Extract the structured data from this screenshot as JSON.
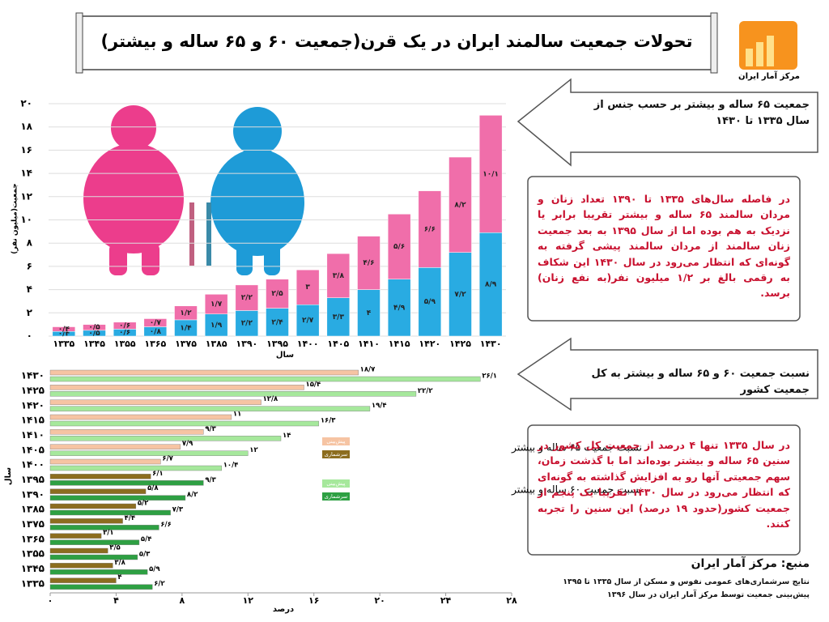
{
  "header": {
    "title": "تحولات جمعیت سالمند ایران در یک قرن(جمعیت ۶۰ و ۶۵ ساله و بیشتر)",
    "logo_text": "مرکز آمار ایران"
  },
  "chart_data": [
    {
      "type": "stacked-bar",
      "x_label": "سال",
      "y_label": "جمعیت(میلیون نفر)",
      "categories": [
        "۱۳۳۵",
        "۱۳۴۵",
        "۱۳۵۵",
        "۱۳۶۵",
        "۱۳۷۵",
        "۱۳۸۵",
        "۱۳۹۰",
        "۱۳۹۵",
        "۱۴۰۰",
        "۱۴۰۵",
        "۱۴۱۰",
        "۱۴۱۵",
        "۱۴۲۰",
        "۱۴۲۵",
        "۱۴۳۰"
      ],
      "series": [
        {
          "color": "#29abe2",
          "values": [
            0.4,
            0.5,
            0.6,
            0.8,
            1.4,
            1.9,
            2.2,
            2.4,
            2.7,
            3.3,
            4,
            4.9,
            5.9,
            7.2,
            8.9
          ],
          "value_labels": [
            "۰/۴",
            "۰/۵",
            "۰/۶",
            "۰/۸",
            "۱/۴",
            "۱/۹",
            "۲/۲",
            "۲/۴",
            "۲/۷",
            "۳/۳",
            "۴",
            "۴/۹",
            "۵/۹",
            "۷/۲",
            "۸/۹"
          ]
        },
        {
          "color": "#f06eaa",
          "values": [
            0.4,
            0.5,
            0.6,
            0.7,
            1.2,
            1.7,
            2.2,
            2.5,
            3,
            3.8,
            4.6,
            5.6,
            6.6,
            8.2,
            10.1
          ],
          "value_labels": [
            "۰/۴",
            "۰/۵",
            "۰/۶",
            "۰/۷",
            "۱/۲",
            "۱/۷",
            "۲/۲",
            "۲/۵",
            "۳",
            "۳/۸",
            "۴/۶",
            "۵/۶",
            "۶/۶",
            "۸/۲",
            "۱۰/۱"
          ]
        }
      ],
      "ylim": [
        0,
        20
      ],
      "yticks": [
        {
          "value": 0,
          "label": "۰"
        },
        {
          "value": 2,
          "label": "۲"
        },
        {
          "value": 4,
          "label": "۴"
        },
        {
          "value": 6,
          "label": "۶"
        },
        {
          "value": 8,
          "label": "۸"
        },
        {
          "value": 10,
          "label": "۱۰"
        },
        {
          "value": 12,
          "label": "۱۲"
        },
        {
          "value": 14,
          "label": "۱۴"
        },
        {
          "value": 16,
          "label": "۱۶"
        },
        {
          "value": 18,
          "label": "۱۸"
        },
        {
          "value": 20,
          "label": "۲۰"
        }
      ],
      "grid": true
    },
    {
      "type": "barh",
      "x_label": "درصد",
      "y_label": "سال",
      "categories": [
        "۱۴۳۰",
        "۱۴۲۵",
        "۱۴۲۰",
        "۱۴۱۵",
        "۱۴۱۰",
        "۱۴۰۵",
        "۱۴۰۰",
        "۱۳۹۵",
        "۱۳۹۰",
        "۱۳۸۵",
        "۱۳۷۵",
        "۱۳۶۵",
        "۱۳۵۵",
        "۱۳۴۵",
        "۱۳۳۵"
      ],
      "series": [
        {
          "name": "پیش‌بینی",
          "group": "نسبت جمعیت ۶۵ ساله و بیشتر",
          "color": "#f6c4a3",
          "values": [
            18.7,
            15.4,
            12.8,
            11,
            9.3,
            7.9,
            6.7,
            null,
            null,
            null,
            null,
            null,
            null,
            null,
            null
          ],
          "value_labels": [
            "۱۸/۷",
            "۱۵/۴",
            "۱۲/۸",
            "۱۱",
            "۹/۳",
            "۷/۹",
            "۶/۷",
            null,
            null,
            null,
            null,
            null,
            null,
            null,
            null
          ]
        },
        {
          "name": "سرشماری",
          "group": "نسبت جمعیت ۶۵ ساله و بیشتر",
          "color": "#8c6d1f",
          "values": [
            null,
            null,
            null,
            null,
            null,
            null,
            null,
            6.1,
            5.8,
            5.2,
            4.4,
            3.1,
            3.5,
            3.8,
            4
          ],
          "value_labels": [
            null,
            null,
            null,
            null,
            null,
            null,
            null,
            "۶/۱",
            "۵/۸",
            "۵/۲",
            "۴/۴",
            "۳/۱",
            "۳/۵",
            "۳/۸",
            "۴"
          ]
        },
        {
          "name": "پیش‌بینی",
          "group": "نسبت جمعیت ۶۰ ساله و بیشتر",
          "color": "#a6e89c",
          "values": [
            26.1,
            22.2,
            19.4,
            16.3,
            14,
            12,
            10.4,
            null,
            null,
            null,
            null,
            null,
            null,
            null,
            null
          ],
          "value_labels": [
            "۲۶/۱",
            "۲۲/۲",
            "۱۹/۴",
            "۱۶/۳",
            "۱۴",
            "۱۲",
            "۱۰/۴",
            null,
            null,
            null,
            null,
            null,
            null,
            null,
            null
          ]
        },
        {
          "name": "سرشماری",
          "group": "نسبت جمعیت ۶۰ ساله و بیشتر",
          "color": "#2ea043",
          "values": [
            null,
            null,
            null,
            null,
            null,
            null,
            null,
            9.3,
            8.2,
            7.3,
            6.6,
            5.4,
            5.3,
            5.9,
            6.2
          ],
          "value_labels": [
            null,
            null,
            null,
            null,
            null,
            null,
            null,
            "۹/۳",
            "۸/۲",
            "۷/۳",
            "۶/۶",
            "۵/۴",
            "۵/۳",
            "۵/۹",
            "۶/۲"
          ]
        }
      ],
      "xlim": [
        0,
        28
      ],
      "xticks": [
        {
          "value": 0,
          "label": "۰"
        },
        {
          "value": 4,
          "label": "۴"
        },
        {
          "value": 8,
          "label": "۸"
        },
        {
          "value": 12,
          "label": "۱۲"
        },
        {
          "value": 16,
          "label": "۱۶"
        },
        {
          "value": 20,
          "label": "۲۰"
        },
        {
          "value": 24,
          "label": "۲۴"
        },
        {
          "value": 28,
          "label": "۲۸"
        }
      ]
    }
  ],
  "panels": [
    {
      "caption": "جمعیت ۶۵ ساله و بیشتر بر حسب جنس از سال ۱۳۳۵ تا ۱۴۳۰",
      "note": "در فاصله سال‌های ۱۳۳۵ تا ۱۳۹۰ تعداد زنان و مردان سالمند ۶۵ ساله و بیشتر تقریبا برابر یا نزدیک به هم بوده اما از سال ۱۳۹۵ به بعد جمعیت زنان سالمند از مردان سالمند پیشی گرفته به گونه‌ای که انتظار می‌رود در سال ۱۴۳۰ این شکاف به رقمی بالغ بر ۱/۲ میلیون نفر(به نفع زنان) برسد."
    },
    {
      "caption": "نسبت جمعیت ۶۰ و ۶۵ ساله و بیشتر به کل جمعیت کشور",
      "note": "در سال ۱۳۳۵ تنها ۴ درصد از جمعیت کل کشور در سنین ۶۵ ساله و بیشتر بوده‌اند اما با گذشت زمان، سهم جمعیتی آنها رو به افزایش گذاشته به گونه‌ای که انتظار می‌رود در سال ۱۴۳۰ تقریبا یک پنجم از جمعیت کشور(حدود ۱۹ درصد) این سنین را تجربه کنند."
    }
  ],
  "source": {
    "title": "منبع: مرکز آمار ایران",
    "lines": [
      "نتایج سرشماری‌های عمومی نفوس و مسکن از سال ۱۳۳۵ تا ۱۳۹۵",
      "پیش‌بینی جمعیت توسط مرکز آمار ایران در سال ۱۳۹۶"
    ]
  }
}
